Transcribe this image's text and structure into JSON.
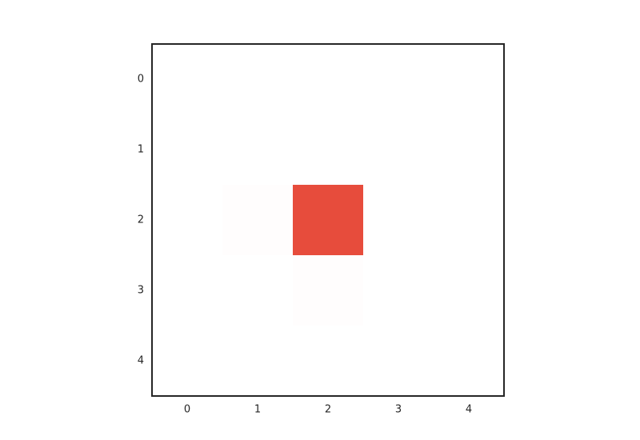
{
  "chart_data": {
    "type": "heatmap",
    "title": "",
    "xlabel": "",
    "ylabel": "",
    "x_categories": [
      "0",
      "1",
      "2",
      "3",
      "4"
    ],
    "y_categories": [
      "0",
      "1",
      "2",
      "3",
      "4"
    ],
    "values": [
      [
        0,
        0,
        0,
        0,
        0
      ],
      [
        0,
        0,
        0,
        0,
        0
      ],
      [
        0,
        0.01,
        1,
        0,
        0
      ],
      [
        0,
        0,
        0.01,
        0,
        0
      ],
      [
        0,
        0,
        0,
        0,
        0
      ]
    ],
    "color_low": "#ffffff",
    "color_high": "#e74c3c",
    "grid": false
  }
}
